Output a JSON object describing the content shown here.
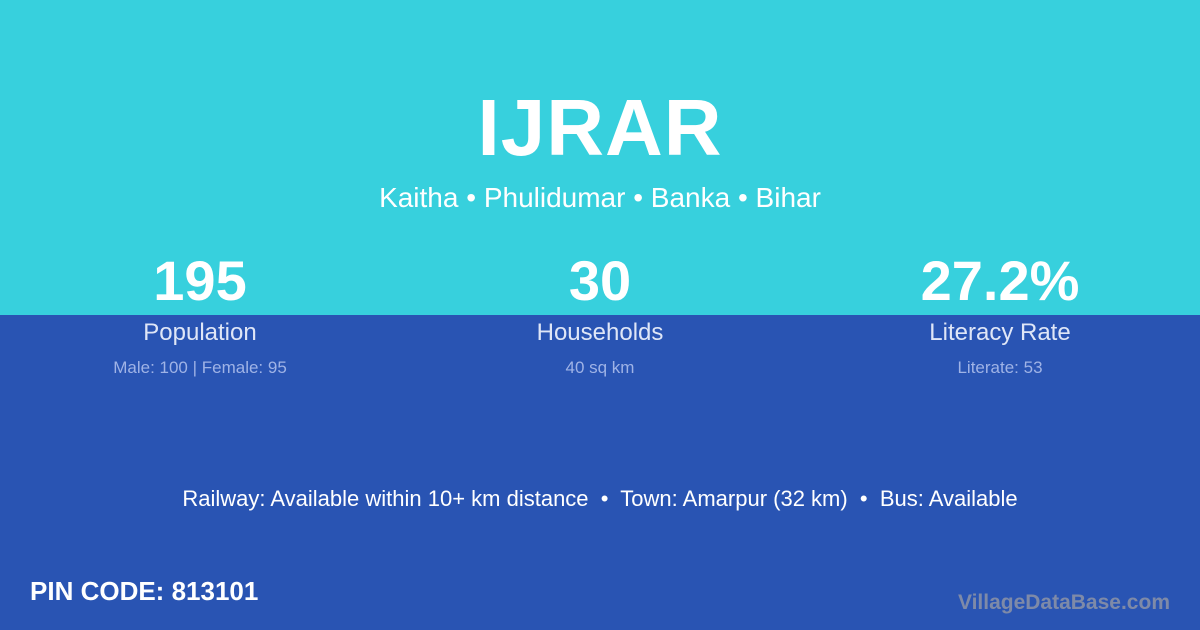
{
  "title": "IJRAR",
  "location": "Kaitha • Phulidumar • Banka • Bihar",
  "stats": [
    {
      "value": "195",
      "label": "Population",
      "detail": "Male: 100 | Female: 95"
    },
    {
      "value": "30",
      "label": "Households",
      "detail": "40 sq km"
    },
    {
      "value": "27.2%",
      "label": "Literacy Rate",
      "detail": "Literate: 53"
    }
  ],
  "access": "Railway: Available within 10+ km distance  •  Town: Amarpur (32 km)  •  Bus: Available",
  "pin": "PIN CODE: 813101",
  "brand": "VillageDataBase.com",
  "colors": {
    "top": "#37d0dd",
    "bottom": "#2954b3"
  }
}
